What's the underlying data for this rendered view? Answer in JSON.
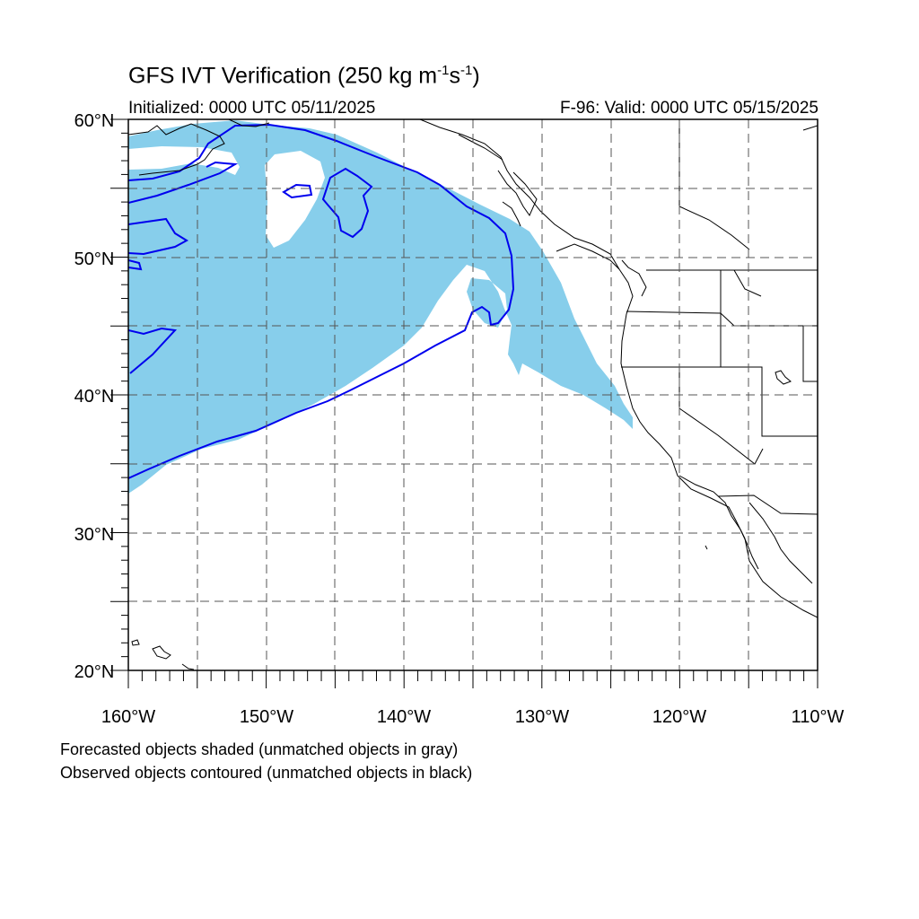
{
  "title": {
    "main": "GFS IVT Verification",
    "units_prefix": "(250 kg m",
    "exp1": "-1",
    "units_mid": "s",
    "exp2": "-1",
    "units_suffix": ")"
  },
  "init_label": "Initialized: 0000 UTC 05/11/2025",
  "valid_label": "F-96: Valid: 0000 UTC 05/15/2025",
  "map": {
    "lon_range": [
      -160,
      -110
    ],
    "lat_range": [
      20,
      60
    ],
    "lat_tick_labels": [
      "60°N",
      "50°N",
      "40°N",
      "30°N",
      "20°N"
    ],
    "lon_tick_labels": [
      "160°W",
      "150°W",
      "140°W",
      "130°W",
      "120°W",
      "110°W"
    ],
    "gridlines": "dashed every 5°",
    "colors": {
      "forecast_fill": "#87ceeb",
      "observed_contour": "#0000ee",
      "coastline": "#000000"
    }
  },
  "legend": {
    "line1": "Forecasted objects shaded (unmatched objects in gray)",
    "line2": "Observed objects contoured (unmatched objects in black)"
  }
}
